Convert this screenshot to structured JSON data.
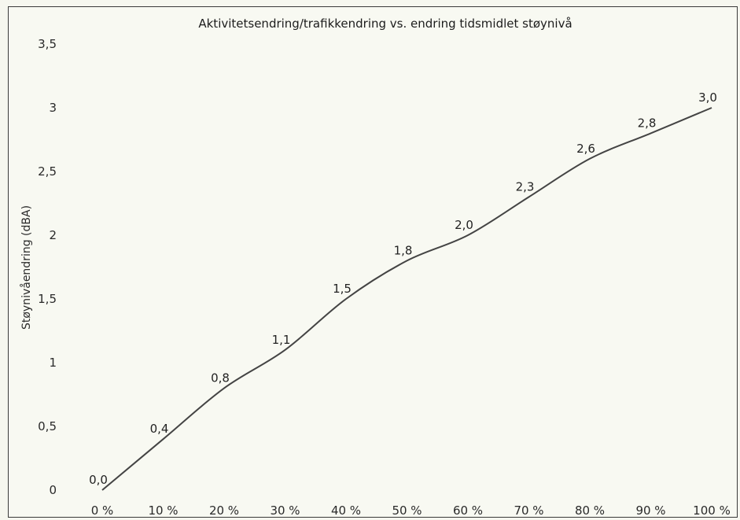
{
  "chart_data": {
    "type": "line",
    "title": "Aktivitetsendring/trafikkendring vs. endring tidsmidlet støynivå",
    "xlabel": "",
    "ylabel": "Støynivåendring (dBA)",
    "categories": [
      "0 %",
      "10 %",
      "20 %",
      "30 %",
      "40 %",
      "50 %",
      "60 %",
      "70 %",
      "80 %",
      "90 %",
      "100 %"
    ],
    "x": [
      0,
      10,
      20,
      30,
      40,
      50,
      60,
      70,
      80,
      90,
      100
    ],
    "values": [
      0.0,
      0.4,
      0.8,
      1.1,
      1.5,
      1.8,
      2.0,
      2.3,
      2.6,
      2.8,
      3.0
    ],
    "data_labels": [
      "0,0",
      "0,4",
      "0,8",
      "1,1",
      "1,5",
      "1,8",
      "2,0",
      "2,3",
      "2,6",
      "2,8",
      "3,0"
    ],
    "y_ticks": [
      0,
      0.5,
      1,
      1.5,
      2,
      2.5,
      3,
      3.5
    ],
    "y_tick_labels": [
      "0",
      "0,5",
      "1",
      "1,5",
      "2",
      "2,5",
      "3",
      "3,5"
    ],
    "ylim": [
      0,
      3.5
    ],
    "xlim": [
      0,
      100
    ],
    "grid": false,
    "legend": "none",
    "colors": {
      "line": "#444444",
      "background": "#f8f9f2",
      "frame": "#3a3a3a"
    }
  }
}
